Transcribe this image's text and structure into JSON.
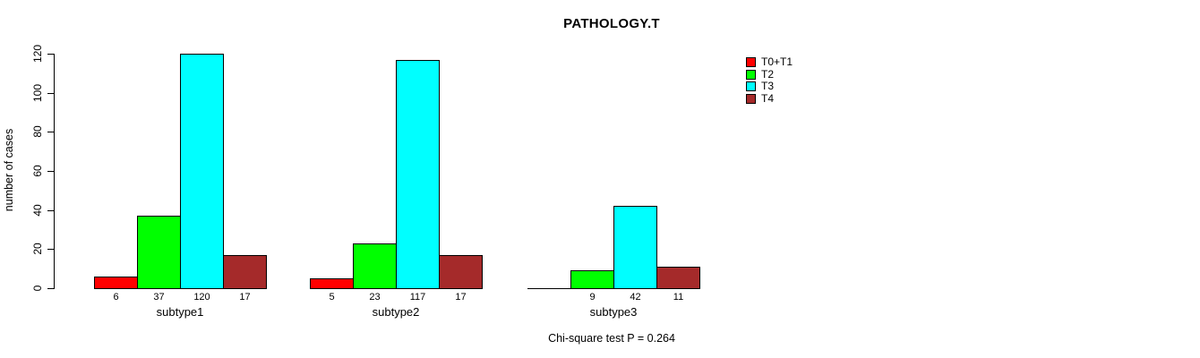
{
  "page": {
    "background": "#ffffff"
  },
  "chart_data": {
    "type": "bar",
    "title": "PATHOLOGY.T",
    "ylabel": "number of cases",
    "xlabel": "",
    "note": "Chi-square test P = 0.264",
    "categories": [
      "subtype1",
      "subtype2",
      "subtype3"
    ],
    "series": [
      {
        "name": "T0+T1",
        "color": "#FF0000",
        "values": [
          6,
          5,
          0
        ]
      },
      {
        "name": "T2",
        "color": "#00FF00",
        "values": [
          37,
          23,
          9
        ]
      },
      {
        "name": "T3",
        "color": "#00FFFF",
        "values": [
          120,
          117,
          42
        ]
      },
      {
        "name": "T4",
        "color": "#A52A2A",
        "values": [
          17,
          17,
          11
        ]
      }
    ],
    "value_labels": [
      [
        "6",
        "37",
        "120",
        "17"
      ],
      [
        "5",
        "23",
        "117",
        "17"
      ],
      [
        "",
        "9",
        "42",
        "11"
      ]
    ],
    "yticks": [
      0,
      20,
      40,
      60,
      80,
      100,
      120
    ],
    "ylim": [
      0,
      120
    ],
    "grid": false,
    "legend_position": "right",
    "bar_border_color": "#000000",
    "axis_color": "#000000"
  }
}
